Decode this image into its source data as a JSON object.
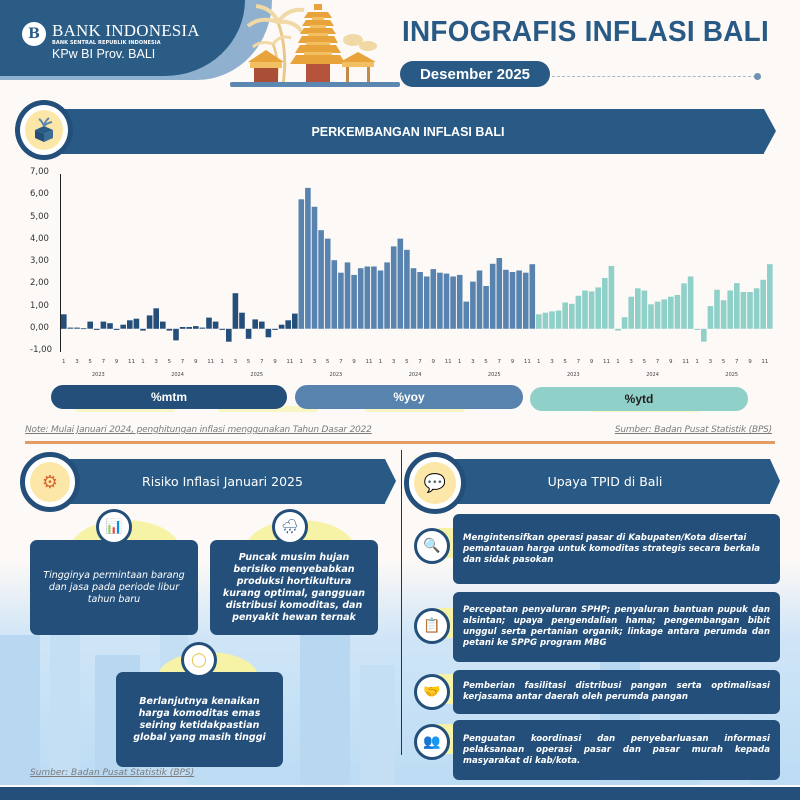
{
  "header": {
    "org_name": "BANK INDONESIA",
    "org_sub": "BANK SENTRAL REPUBLIK INDONESIA",
    "office": "KPw BI Prov. BALI",
    "logo_glyph": "B",
    "title": "INFOGRAFIS INFLASI BALI",
    "period": "Desember 2025"
  },
  "section_chart": {
    "title": "PERKEMBANGAN INFLASI BALI",
    "icon": "box-plant-icon",
    "note": "Note: Mulai Januari 2024, penghitungan inflasi menggunakan Tahun Dasar 2022",
    "source": "Sumber: Badan Pusat Statistik (BPS)",
    "legend": [
      {
        "label": "%mtm",
        "color": "#234f7a",
        "text_color": "#ffffff"
      },
      {
        "label": "%yoy",
        "color": "#5883ae",
        "text_color": "#ffffff"
      },
      {
        "label": "%ytd",
        "color": "#8fd0c9",
        "text_color": "#1f1f1f"
      }
    ]
  },
  "chart_data": {
    "type": "bar",
    "title": "PERKEMBANGAN INFLASI BALI",
    "xlabel": "",
    "ylabel": "",
    "ylim": [
      -1.0,
      7.0
    ],
    "yticks": [
      "7,00",
      "6,00",
      "5,00",
      "4,00",
      "3,00",
      "2,00",
      "1,00",
      "0,00",
      "-1,00"
    ],
    "grid": false,
    "legend_position": "bottom",
    "month_tick_labels": [
      "1",
      "3",
      "5",
      "7",
      "9",
      "11"
    ],
    "years": [
      "2023",
      "2024",
      "2025"
    ],
    "series": [
      {
        "name": "%mtm",
        "color": "#234f7a",
        "values": [
          0.65,
          0.05,
          0.05,
          0.02,
          0.32,
          -0.05,
          0.32,
          0.25,
          -0.05,
          0.18,
          0.38,
          0.45,
          -0.08,
          0.6,
          0.92,
          0.32,
          -0.08,
          -0.52,
          0.08,
          0.08,
          0.12,
          0.05,
          0.5,
          0.32,
          -0.05,
          -0.58,
          1.6,
          0.72,
          -0.45,
          0.42,
          0.32,
          -0.38,
          -0.05,
          0.18,
          0.38,
          0.68
        ]
      },
      {
        "name": "%yoy",
        "color": "#5883ae",
        "values": [
          5.82,
          6.33,
          5.48,
          4.43,
          4.05,
          3.08,
          2.52,
          2.98,
          2.42,
          2.72,
          2.8,
          2.8,
          2.62,
          2.98,
          3.7,
          4.05,
          3.55,
          2.72,
          2.55,
          2.35,
          2.68,
          2.52,
          2.48,
          2.35,
          2.42,
          1.22,
          2.12,
          2.62,
          1.92,
          2.92,
          3.18,
          2.65,
          2.55,
          2.62,
          2.52,
          2.9
        ]
      },
      {
        "name": "%ytd",
        "color": "#8fd0c9",
        "values": [
          0.65,
          0.72,
          0.78,
          0.82,
          1.18,
          1.12,
          1.48,
          1.72,
          1.68,
          1.86,
          2.28,
          2.82,
          -0.08,
          0.52,
          1.44,
          1.82,
          1.72,
          1.1,
          1.22,
          1.32,
          1.44,
          1.52,
          2.04,
          2.35,
          -0.05,
          -0.58,
          1.02,
          1.75,
          1.28,
          1.72,
          2.05,
          1.65,
          1.65,
          1.82,
          2.2,
          2.9
        ]
      }
    ]
  },
  "section_risk": {
    "title": "Risiko Inflasi Januari 2025",
    "icon": "gear-money-icon",
    "items": [
      {
        "icon": "sale-chart-icon",
        "text": "Tingginya permintaan barang dan jasa pada periode libur tahun baru"
      },
      {
        "icon": "rain-cloud-icon",
        "text": "Puncak musim hujan berisiko menyebabkan produksi hortikultura kurang optimal, gangguan distribusi komoditas, dan penyakit hewan ternak"
      },
      {
        "icon": "gold-ring-icon",
        "text": "Berlanjutnya kenaikan harga komoditas emas seiring ketidakpastian global yang masih tinggi"
      }
    ],
    "source": "Sumber: Badan Pusat Statistik (BPS)"
  },
  "section_upaya": {
    "title": "Upaya TPID di Bali",
    "icon": "person-chat-icon",
    "items": [
      {
        "icon": "magnifier-chart-icon",
        "text": "Mengintensifkan operasi pasar di Kabupaten/Kota disertai pemantauan harga untuk komoditas strategis secara berkala dan sidak pasokan"
      },
      {
        "icon": "presentation-icon",
        "text": "Percepatan penyaluran SPHP; penyaluran bantuan pupuk dan alsintan; upaya pengendalian hama; pengembangan bibit unggul serta pertanian organik; linkage antara perumda dan petani ke SPPG program MBG"
      },
      {
        "icon": "handshake-icon",
        "text": "Pemberian fasilitasi distribusi pangan serta optimalisasi kerjasama antar daerah oleh perumda pangan"
      },
      {
        "icon": "team-board-icon",
        "text": "Penguatan koordinasi dan penyebarluasan informasi pelaksanaan operasi pasar dan pasar murah kepada masyarakat di kab/kota."
      }
    ]
  }
}
